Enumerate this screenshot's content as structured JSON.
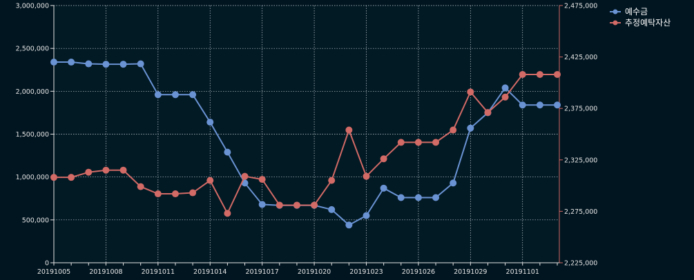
{
  "chart_data": {
    "type": "line",
    "x": [
      "20191005",
      "20191006",
      "20191007",
      "20191008",
      "20191009",
      "20191010",
      "20191011",
      "20191012",
      "20191013",
      "20191014",
      "20191015",
      "20191016",
      "20191017",
      "20191018",
      "20191019",
      "20191020",
      "20191021",
      "20191022",
      "20191023",
      "20191024",
      "20191025",
      "20191026",
      "20191027",
      "20191028",
      "20191029",
      "20191030",
      "20191031",
      "20191101",
      "20191102",
      "20191103"
    ],
    "x_tick_labels": [
      "20191005",
      "20191008",
      "20191011",
      "20191014",
      "20191017",
      "20191020",
      "20191023",
      "20191026",
      "20191029",
      "20191101"
    ],
    "series": [
      {
        "name": "예수금",
        "axis": "left",
        "color": "#6a93d4",
        "values": [
          2340000,
          2340000,
          2320000,
          2315000,
          2315000,
          2320000,
          1960000,
          1960000,
          1960000,
          1640000,
          1290000,
          930000,
          680000,
          670000,
          670000,
          670000,
          620000,
          440000,
          550000,
          870000,
          760000,
          760000,
          760000,
          930000,
          1570000,
          1750000,
          2040000,
          1840000,
          1840000,
          1840000
        ]
      },
      {
        "name": "추정예탁자산",
        "axis": "right",
        "color": "#d26a66",
        "values": [
          2308000,
          2308000,
          2313000,
          2315000,
          2315000,
          2299000,
          2292000,
          2292000,
          2293000,
          2305000,
          2273000,
          2309000,
          2306000,
          2281000,
          2281000,
          2281000,
          2305000,
          2354000,
          2309000,
          2326000,
          2342000,
          2342000,
          2342000,
          2354000,
          2391000,
          2371000,
          2386000,
          2408000,
          2408000,
          2408000
        ]
      }
    ],
    "y_left": {
      "min": 0,
      "max": 3000000,
      "ticks": [
        0,
        500000,
        1000000,
        1500000,
        2000000,
        2500000,
        3000000
      ]
    },
    "y_right": {
      "min": 2225000,
      "max": 2475000,
      "ticks": [
        2225000,
        2275000,
        2325000,
        2375000,
        2425000,
        2475000
      ]
    },
    "grid": true,
    "legend_position": "top-right",
    "title": "",
    "xlabel": "",
    "ylabel": ""
  }
}
